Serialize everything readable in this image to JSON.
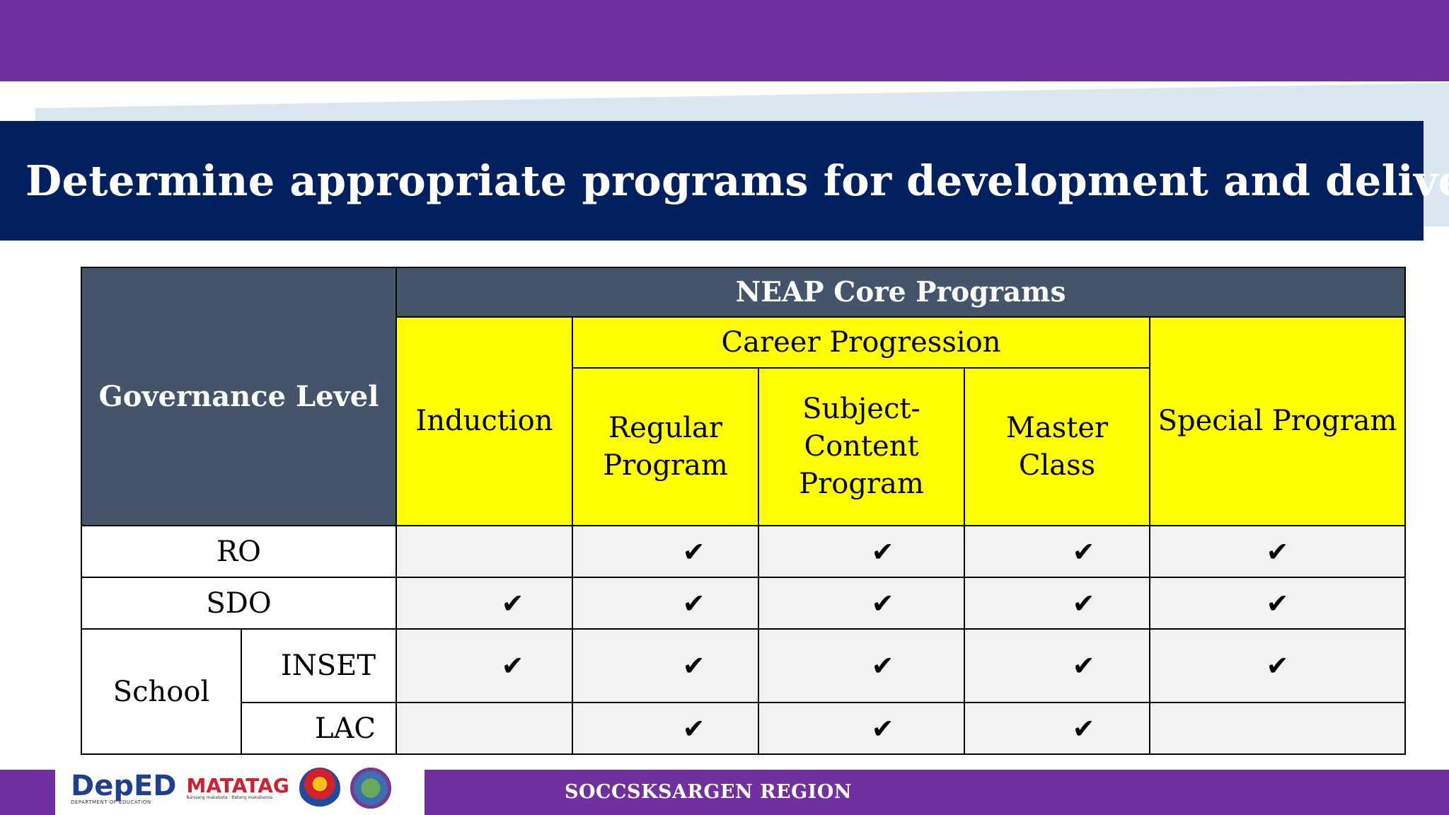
{
  "title": "Determine appropriate programs for development and delivery.",
  "table": {
    "governance_header": "Governance Level",
    "neap_header": "NEAP Core Programs",
    "career_header": "Career Progression",
    "columns": {
      "induction": "Induction",
      "regular": "Regular Program",
      "subject": "Subject-Content Program",
      "master": "Master Class",
      "special": "Special Program"
    },
    "school_label": "School",
    "check_symbol": "✔",
    "rows": [
      {
        "level": "RO",
        "induction": "",
        "regular": "✔",
        "subject": "✔",
        "master": "✔",
        "special": "✔"
      },
      {
        "level": "SDO",
        "induction": "✔",
        "regular": "✔",
        "subject": "✔",
        "master": "✔",
        "special": "✔"
      },
      {
        "level": "INSET",
        "induction": "✔",
        "regular": "✔",
        "subject": "✔",
        "master": "✔",
        "special": "✔"
      },
      {
        "level": "LAC",
        "induction": "",
        "regular": "✔",
        "subject": "✔",
        "master": "✔",
        "special": ""
      }
    ]
  },
  "footer": {
    "region": "SOCCSKSARGEN REGION",
    "logos": {
      "deped": "DepED",
      "deped_sub": "DEPARTMENT OF EDUCATION",
      "matatag": "MATATAG",
      "matatag_sub": "Bansang makabata · Batang makabansa",
      "bagong_pilipinas": "BAGONG PILIPINAS"
    }
  },
  "colors": {
    "purple": "#7030a0",
    "navy": "#002060",
    "header_gray": "#44546a",
    "yellow": "#ffff00",
    "cell_gray": "#f2f2f2"
  }
}
